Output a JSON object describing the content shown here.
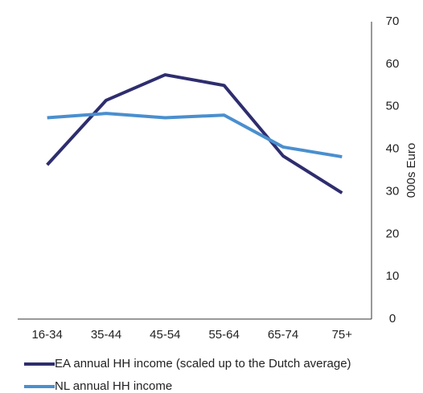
{
  "chart_data": {
    "type": "line",
    "categories": [
      "16-34",
      "35-44",
      "45-54",
      "55-64",
      "65-74",
      "75+"
    ],
    "series": [
      {
        "name": "EA annual HH income (scaled up to the Dutch average)",
        "color": "#2e2d6e",
        "values": [
          36.3,
          51.5,
          57.5,
          55,
          38.4,
          29.7
        ]
      },
      {
        "name": "NL annual HH income",
        "color": "#4a8fcf",
        "values": [
          47.4,
          48.4,
          47.4,
          48,
          40.5,
          38.2
        ]
      }
    ],
    "y_label": "000s Euro",
    "ylim": [
      0,
      70
    ],
    "yticks": [
      0,
      10,
      20,
      30,
      40,
      50,
      60,
      70
    ],
    "y_axis_side": "right",
    "grid": false,
    "legend": "bottom"
  }
}
